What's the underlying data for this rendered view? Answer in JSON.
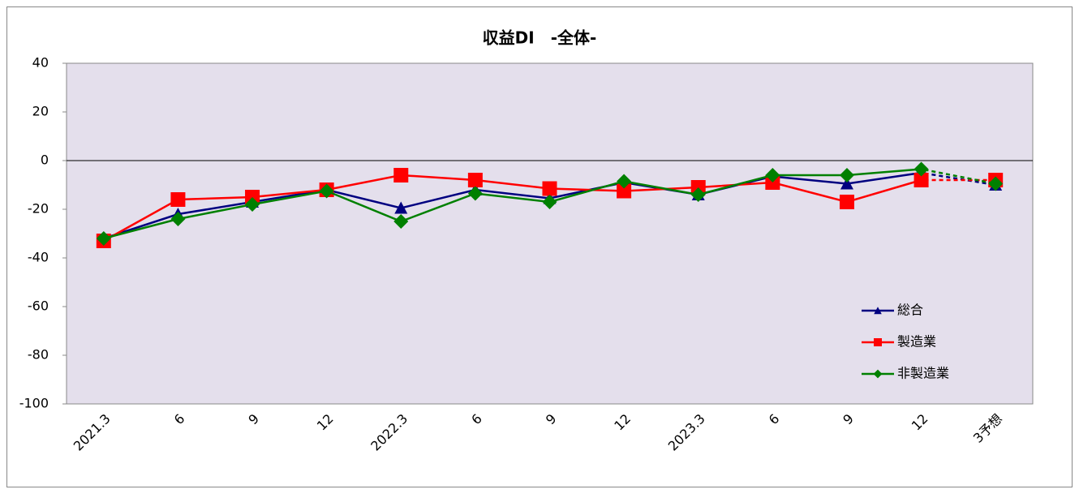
{
  "chart_data": {
    "type": "line",
    "title": "収益DI　-全体-",
    "categories": [
      "2021.3",
      "6",
      "9",
      "12",
      "2022.3",
      "6",
      "9",
      "12",
      "2023.3",
      "6",
      "9",
      "12",
      "3予想"
    ],
    "series": [
      {
        "name": "総合",
        "color": "#000080",
        "marker": "triangle",
        "values": [
          -32,
          -22,
          -17,
          -12,
          -19.5,
          -12,
          -15.5,
          -9,
          -14,
          -6.5,
          -9.5,
          -5,
          -10
        ]
      },
      {
        "name": "製造業",
        "color": "#ff0000",
        "marker": "square",
        "values": [
          -33,
          -16,
          -15,
          -12,
          -6,
          -8,
          -11.5,
          -12.5,
          -11,
          -9,
          -17,
          -8,
          -8
        ]
      },
      {
        "name": "非製造業",
        "color": "#008000",
        "marker": "diamond",
        "values": [
          -32,
          -24,
          -18,
          -12.5,
          -25,
          -13.5,
          -17,
          -8.5,
          -14,
          -6,
          -6,
          -3.5,
          -9.5
        ]
      }
    ],
    "ylim": [
      -100,
      40
    ],
    "yticks": [
      -100,
      -80,
      -60,
      -40,
      -20,
      0,
      20,
      40
    ],
    "dashed_last_segment": true,
    "plot_background": "#e4dfec"
  }
}
